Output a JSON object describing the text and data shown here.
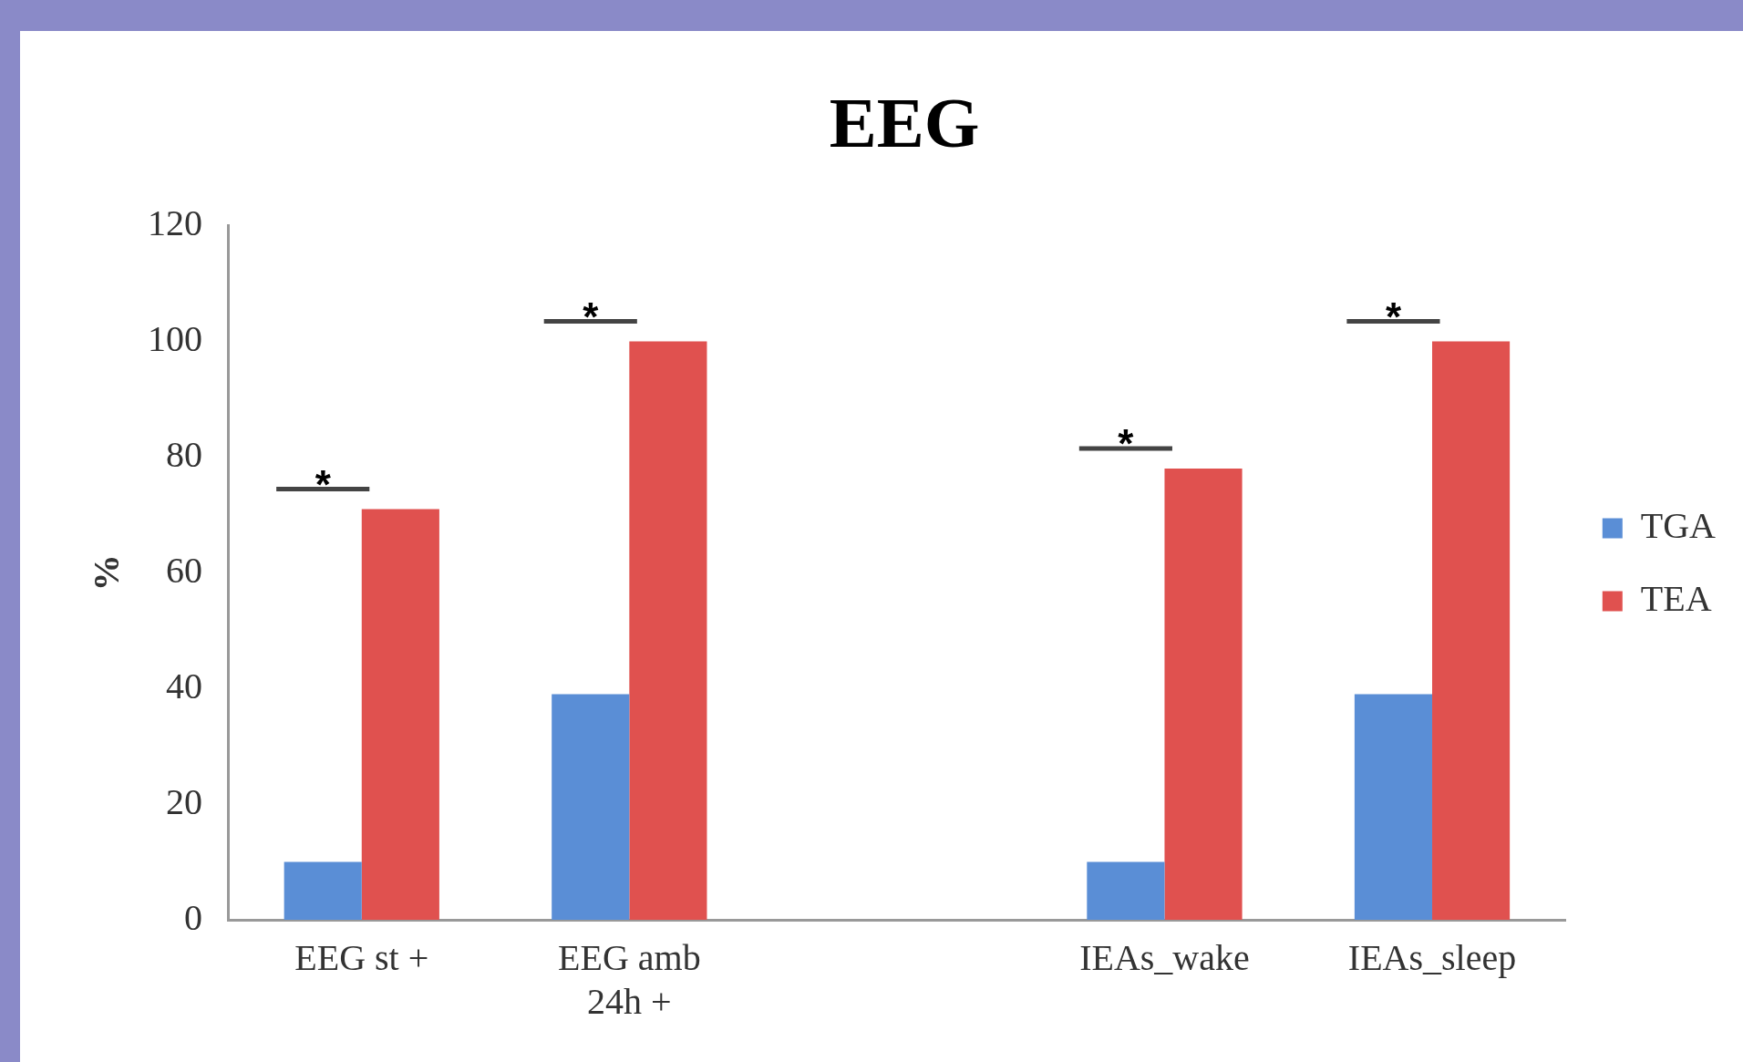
{
  "chart_data": {
    "type": "bar",
    "title": "EEG",
    "ylabel": "%",
    "categories": [
      "EEG st +",
      "EEG amb 24h +",
      null,
      "IEAs_wake",
      "IEAs_sleep"
    ],
    "series": [
      {
        "name": "TGA",
        "color": "#5a8ed6",
        "values": [
          10,
          39,
          null,
          10,
          39
        ]
      },
      {
        "name": "TEA",
        "color": "#e0514f",
        "values": [
          71,
          100,
          null,
          78,
          100
        ]
      }
    ],
    "ylim": [
      0,
      120
    ],
    "yticks": [
      0,
      20,
      40,
      60,
      80,
      100,
      120
    ],
    "grid": false,
    "legend": "right",
    "annotations": [
      "*",
      "*",
      "*",
      "*"
    ]
  }
}
